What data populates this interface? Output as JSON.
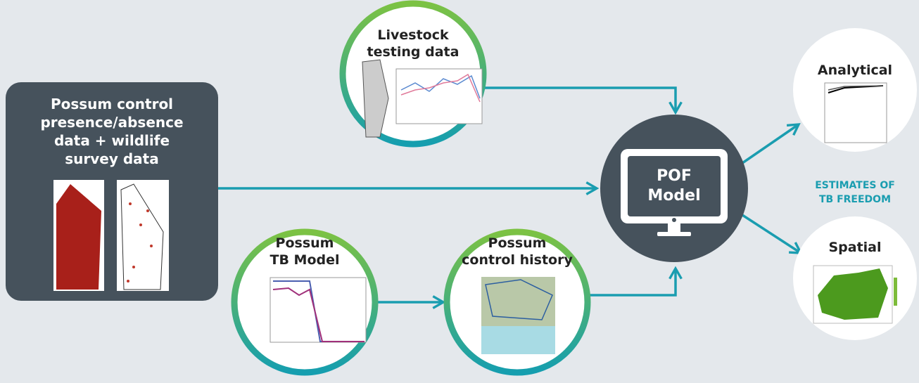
{
  "input_box": {
    "title_lines": [
      "Possum control",
      "presence/absence",
      "data + wildlife",
      "survey data"
    ]
  },
  "nodes": [
    {
      "title_lines": [
        "Livestock",
        "testing data"
      ]
    },
    {
      "title_lines": [
        "Possum",
        "TB Model"
      ]
    },
    {
      "title_lines": [
        "Possum",
        "control history"
      ]
    }
  ],
  "pof_model": {
    "label_lines": [
      "POF",
      "Model"
    ]
  },
  "outputs": {
    "caption_lines": [
      "ESTIMATES OF",
      "TB FREEDOM"
    ],
    "analytical": "Analytical",
    "spatial": "Spatial"
  }
}
